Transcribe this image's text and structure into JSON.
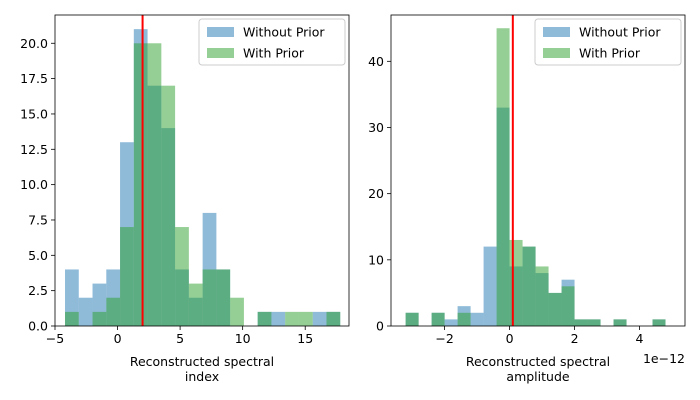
{
  "chart_data": [
    {
      "type": "bar",
      "subtype": "overlaid-histogram",
      "title": "",
      "xlabel": "Reconstructed spectral\nindex",
      "ylabel": "",
      "xlim": [
        -5,
        18.5
      ],
      "ylim": [
        0,
        22
      ],
      "xticks": [
        -5,
        0,
        5,
        10,
        15
      ],
      "xtick_labels": [
        "−5",
        "0",
        "5",
        "10",
        "15"
      ],
      "yticks": [
        0,
        2.5,
        5,
        7.5,
        10,
        12.5,
        15,
        17.5,
        20
      ],
      "ytick_labels": [
        "0.0",
        "2.5",
        "5.0",
        "7.5",
        "10.0",
        "12.5",
        "15.0",
        "17.5",
        "20.0"
      ],
      "bin_width": 1.1,
      "vline": 2.0,
      "legend": "top-right",
      "series": [
        {
          "name": "Without Prior",
          "color": "#1f77b4",
          "bins": [
            [
              -4.2,
              4
            ],
            [
              -3.1,
              2
            ],
            [
              -2.0,
              3
            ],
            [
              -0.9,
              4
            ],
            [
              0.2,
              13
            ],
            [
              1.3,
              21
            ],
            [
              2.4,
              17
            ],
            [
              3.5,
              14
            ],
            [
              4.6,
              4
            ],
            [
              5.7,
              2
            ],
            [
              6.8,
              8
            ],
            [
              7.9,
              4
            ],
            [
              11.2,
              1
            ],
            [
              12.3,
              1
            ],
            [
              15.6,
              1
            ],
            [
              16.7,
              1
            ]
          ]
        },
        {
          "name": "With Prior",
          "color": "#2ca02c",
          "bins": [
            [
              -4.2,
              1
            ],
            [
              -2.0,
              1
            ],
            [
              -0.9,
              2
            ],
            [
              0.2,
              7
            ],
            [
              1.3,
              20
            ],
            [
              2.4,
              20
            ],
            [
              3.5,
              17
            ],
            [
              4.6,
              7
            ],
            [
              5.7,
              3
            ],
            [
              6.8,
              4
            ],
            [
              7.9,
              4
            ],
            [
              9.0,
              2
            ],
            [
              11.2,
              1
            ],
            [
              13.4,
              1
            ],
            [
              14.5,
              1
            ],
            [
              16.7,
              1
            ]
          ]
        }
      ]
    },
    {
      "type": "bar",
      "subtype": "overlaid-histogram",
      "title": "",
      "xlabel": "Reconstructed spectral\namplitude",
      "ylabel": "",
      "offset_text": "1e−12",
      "xlim": [
        -3.65,
        5.4
      ],
      "ylim": [
        0,
        47
      ],
      "xticks": [
        -2,
        0,
        2,
        4
      ],
      "xtick_labels": [
        "−2",
        "0",
        "2",
        "4"
      ],
      "yticks": [
        0,
        10,
        20,
        30,
        40
      ],
      "ytick_labels": [
        "0",
        "10",
        "20",
        "30",
        "40"
      ],
      "bin_width": 0.4,
      "vline": 0.1,
      "legend": "top-right",
      "series": [
        {
          "name": "Without Prior",
          "color": "#1f77b4",
          "bins": [
            [
              -3.2,
              2
            ],
            [
              -2.4,
              2
            ],
            [
              -2.0,
              1
            ],
            [
              -1.6,
              3
            ],
            [
              -1.2,
              2
            ],
            [
              -0.8,
              12
            ],
            [
              -0.4,
              33
            ],
            [
              0.0,
              9
            ],
            [
              0.4,
              12
            ],
            [
              0.8,
              8
            ],
            [
              1.2,
              5
            ],
            [
              1.6,
              7
            ],
            [
              2.0,
              1
            ],
            [
              2.4,
              1
            ],
            [
              3.2,
              1
            ],
            [
              4.4,
              1
            ]
          ]
        },
        {
          "name": "With Prior",
          "color": "#2ca02c",
          "bins": [
            [
              -3.2,
              2
            ],
            [
              -2.4,
              2
            ],
            [
              -1.6,
              2
            ],
            [
              -0.4,
              45
            ],
            [
              0.0,
              13
            ],
            [
              0.4,
              12
            ],
            [
              0.8,
              9
            ],
            [
              1.2,
              5
            ],
            [
              1.6,
              6
            ],
            [
              2.0,
              1
            ],
            [
              2.4,
              1
            ],
            [
              3.2,
              1
            ],
            [
              4.4,
              1
            ]
          ]
        }
      ]
    }
  ]
}
